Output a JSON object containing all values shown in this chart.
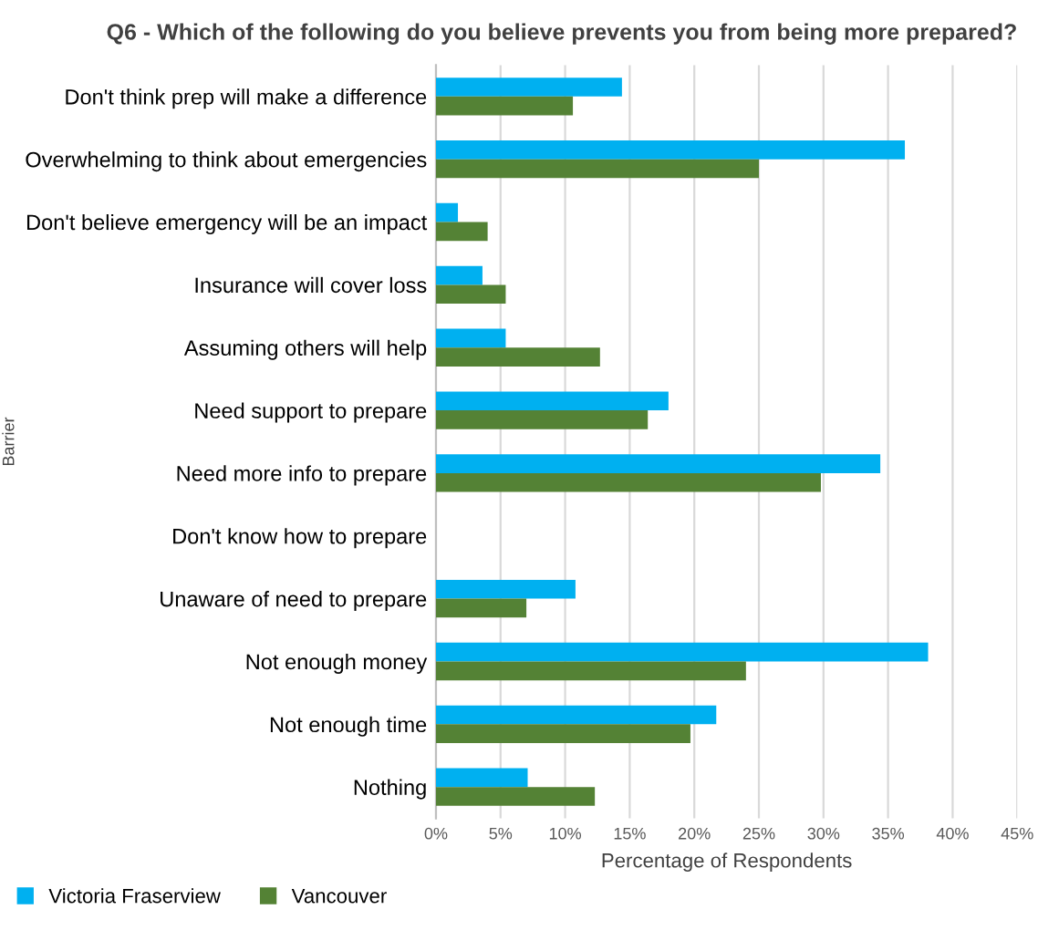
{
  "chart_data": {
    "type": "bar",
    "orientation": "horizontal",
    "title": "Q6 - Which of the following do you believe prevents you from being more prepared?",
    "xlabel": "Percentage of Respondents",
    "ylabel": "Barrier",
    "categories": [
      "Don't think prep will make a difference",
      "Overwhelming to think about emergencies",
      "Don't believe emergency will be an impact",
      "Insurance will cover loss",
      "Assuming others will help",
      "Need support to prepare",
      "Need more info to prepare",
      "Don't know how to prepare",
      "Unaware of need to prepare",
      "Not enough money",
      "Not enough time",
      "Nothing"
    ],
    "series": [
      {
        "name": "Victoria Fraserview",
        "color": "#00b0f0",
        "values": [
          14.4,
          36.3,
          1.7,
          3.6,
          5.4,
          18.0,
          34.4,
          0,
          10.8,
          38.1,
          21.7,
          7.1
        ]
      },
      {
        "name": "Vancouver",
        "color": "#548235",
        "values": [
          10.6,
          25.0,
          4.0,
          5.4,
          12.7,
          16.4,
          29.8,
          0,
          7.0,
          24.0,
          19.7,
          12.3
        ]
      }
    ],
    "xlim": [
      0,
      45
    ],
    "xticks": [
      {
        "value": 0,
        "label": "0%"
      },
      {
        "value": 5,
        "label": "5%"
      },
      {
        "value": 10,
        "label": "10%"
      },
      {
        "value": 15,
        "label": "15%"
      },
      {
        "value": 20,
        "label": "20%"
      },
      {
        "value": 25,
        "label": "25%"
      },
      {
        "value": 30,
        "label": "30%"
      },
      {
        "value": 35,
        "label": "35%"
      },
      {
        "value": 40,
        "label": "40%"
      },
      {
        "value": 45,
        "label": "45%"
      }
    ],
    "grid": "x",
    "legend": "bottom left"
  }
}
